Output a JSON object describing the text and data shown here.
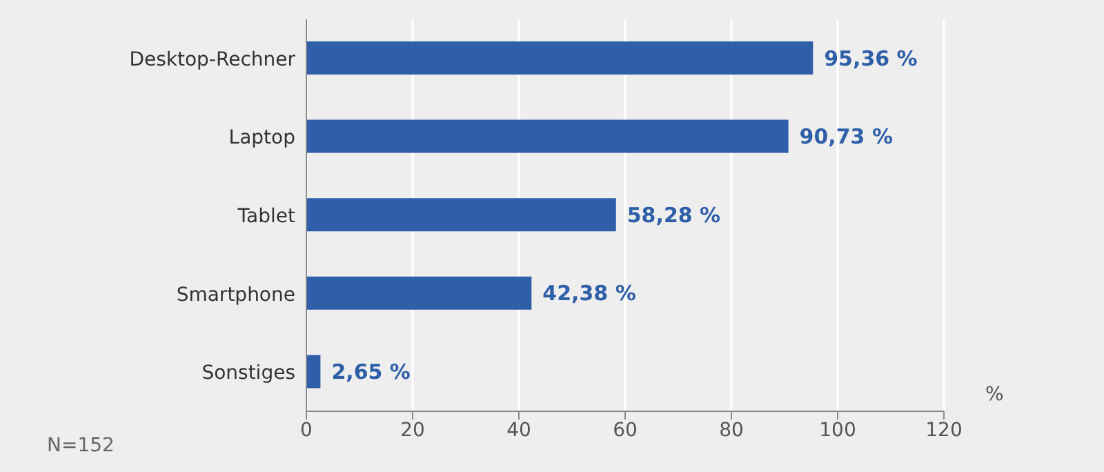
{
  "chart_data": {
    "type": "bar",
    "orientation": "horizontal",
    "xlabel": "%",
    "categories": [
      "Desktop-Rechner",
      "Laptop",
      "Tablet",
      "Smartphone",
      "Sonstiges"
    ],
    "values": [
      95.36,
      90.73,
      58.28,
      42.38,
      2.65
    ],
    "value_labels": [
      "95,36 %",
      "90,73 %",
      "58,28 %",
      "42,38 %",
      "2,65 %"
    ],
    "color": "#2e5fa8",
    "xlim": [
      0,
      120
    ],
    "xticks": [
      0,
      20,
      40,
      60,
      80,
      100,
      120
    ],
    "grid": "x",
    "annotations": [
      "N=152"
    ]
  }
}
